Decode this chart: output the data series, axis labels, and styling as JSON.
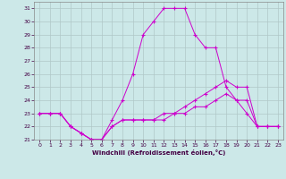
{
  "xlabel": "Windchill (Refroidissement éolien,°C)",
  "background_color": "#cce8e8",
  "grid_color": "#b0c8c8",
  "line_color": "#cc00cc",
  "xlim": [
    -0.5,
    23.5
  ],
  "ylim": [
    21,
    31.5
  ],
  "xticks": [
    0,
    1,
    2,
    3,
    4,
    5,
    6,
    7,
    8,
    9,
    10,
    11,
    12,
    13,
    14,
    15,
    16,
    17,
    18,
    19,
    20,
    21,
    22,
    23
  ],
  "yticks": [
    21,
    22,
    23,
    24,
    25,
    26,
    27,
    28,
    29,
    30,
    31
  ],
  "series": [
    {
      "x": [
        0,
        1,
        2,
        3,
        4,
        5,
        6,
        7,
        8,
        9,
        10,
        11,
        12,
        13,
        14,
        15,
        16,
        17,
        18,
        19,
        20,
        21,
        22,
        23
      ],
      "y": [
        23,
        23,
        23,
        22,
        21.5,
        21,
        21,
        22.5,
        24,
        26,
        29,
        30,
        31,
        31,
        31,
        29,
        28,
        28,
        25,
        24,
        23,
        22,
        22,
        22
      ]
    },
    {
      "x": [
        0,
        1,
        2,
        3,
        4,
        5,
        6,
        7,
        8,
        9,
        10,
        11,
        12,
        13,
        14,
        15,
        16,
        17,
        18,
        19,
        20,
        21,
        22,
        23
      ],
      "y": [
        23,
        23,
        23,
        22,
        21.5,
        21,
        21,
        22,
        22.5,
        22.5,
        22.5,
        22.5,
        22.5,
        23,
        23.5,
        24,
        24.5,
        25,
        25.5,
        25,
        25,
        22,
        22,
        22
      ]
    },
    {
      "x": [
        0,
        1,
        2,
        3,
        4,
        5,
        6,
        7,
        8,
        9,
        10,
        11,
        12,
        13,
        14,
        15,
        16,
        17,
        18,
        19,
        20,
        21,
        22,
        23
      ],
      "y": [
        23,
        23,
        23,
        22,
        21.5,
        21,
        21,
        22,
        22.5,
        22.5,
        22.5,
        22.5,
        23,
        23,
        23,
        23.5,
        23.5,
        24,
        24.5,
        24,
        24,
        22,
        22,
        22
      ]
    }
  ]
}
